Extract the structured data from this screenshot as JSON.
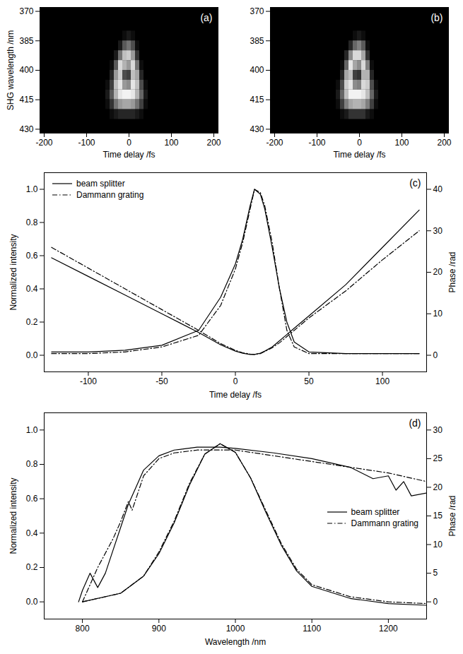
{
  "chart_data": [
    {
      "type": "heatmap",
      "annotations": [
        "(a)"
      ],
      "x_label": "Time delay /fs",
      "y_label": "SHG wavelength /nm",
      "xlim": [
        -210,
        210
      ],
      "xticks": [
        -200,
        -100,
        0,
        100,
        200
      ],
      "ylim": [
        432,
        368
      ],
      "yticks": [
        370,
        385,
        400,
        415,
        430
      ],
      "zlim": [
        0,
        1
      ],
      "x_edges": [
        -65,
        -55,
        -45,
        -35,
        -25,
        -15,
        -5,
        5,
        15,
        25,
        35,
        45,
        55,
        65
      ],
      "y_edges": [
        380,
        385,
        390,
        395,
        400,
        405,
        410,
        415,
        420,
        425
      ],
      "z": [
        [
          0,
          0,
          0,
          0,
          0,
          0.05,
          0.1,
          0.05,
          0,
          0,
          0,
          0,
          0
        ],
        [
          0,
          0,
          0,
          0,
          0.1,
          0.35,
          0.45,
          0.3,
          0.05,
          0,
          0,
          0,
          0
        ],
        [
          0,
          0,
          0,
          0.1,
          0.45,
          0.75,
          0.8,
          0.6,
          0.2,
          0,
          0,
          0,
          0
        ],
        [
          0,
          0,
          0.05,
          0.35,
          0.85,
          0.7,
          0.6,
          0.85,
          0.45,
          0.05,
          0,
          0,
          0
        ],
        [
          0,
          0,
          0.15,
          0.6,
          0.8,
          0.3,
          0.25,
          0.75,
          0.65,
          0.15,
          0,
          0,
          0
        ],
        [
          0,
          0.05,
          0.25,
          0.75,
          0.9,
          0.6,
          0.55,
          0.9,
          0.75,
          0.3,
          0.05,
          0,
          0
        ],
        [
          0,
          0.1,
          0.35,
          0.7,
          0.9,
          0.95,
          0.95,
          0.9,
          0.7,
          0.4,
          0.1,
          0,
          0
        ],
        [
          0,
          0.05,
          0.2,
          0.45,
          0.6,
          0.65,
          0.65,
          0.6,
          0.45,
          0.25,
          0.05,
          0,
          0
        ],
        [
          0,
          0,
          0.05,
          0.1,
          0.15,
          0.15,
          0.15,
          0.15,
          0.1,
          0.05,
          0,
          0,
          0
        ]
      ]
    },
    {
      "type": "heatmap",
      "annotations": [
        "(b)"
      ],
      "x_label": "Time delay /fs",
      "xlim": [
        -210,
        210
      ],
      "xticks": [
        -200,
        -100,
        0,
        100,
        200
      ],
      "ylim": [
        432,
        368
      ],
      "yticks": [
        370,
        385,
        400,
        415,
        430
      ],
      "zlim": [
        0,
        1
      ],
      "x_edges": [
        -65,
        -55,
        -45,
        -35,
        -25,
        -15,
        -5,
        5,
        15,
        25,
        35,
        45,
        55,
        65
      ],
      "y_edges": [
        380,
        385,
        390,
        395,
        400,
        405,
        410,
        415,
        420,
        425
      ],
      "z": [
        [
          0,
          0,
          0,
          0,
          0,
          0.05,
          0.1,
          0.05,
          0,
          0,
          0,
          0,
          0
        ],
        [
          0,
          0,
          0,
          0,
          0.15,
          0.4,
          0.5,
          0.35,
          0.05,
          0,
          0,
          0,
          0
        ],
        [
          0,
          0,
          0,
          0.15,
          0.55,
          0.85,
          0.85,
          0.65,
          0.2,
          0,
          0,
          0,
          0
        ],
        [
          0,
          0,
          0.05,
          0.4,
          0.9,
          0.65,
          0.55,
          0.85,
          0.5,
          0.05,
          0,
          0,
          0
        ],
        [
          0,
          0,
          0.15,
          0.65,
          0.75,
          0.25,
          0.2,
          0.7,
          0.7,
          0.15,
          0,
          0,
          0
        ],
        [
          0,
          0.05,
          0.3,
          0.8,
          0.9,
          0.55,
          0.5,
          0.85,
          0.8,
          0.3,
          0.05,
          0,
          0
        ],
        [
          0,
          0.1,
          0.4,
          0.75,
          0.95,
          0.95,
          0.95,
          0.9,
          0.75,
          0.4,
          0.1,
          0,
          0
        ],
        [
          0,
          0.05,
          0.25,
          0.5,
          0.65,
          0.7,
          0.7,
          0.65,
          0.5,
          0.25,
          0.05,
          0,
          0
        ],
        [
          0,
          0,
          0.05,
          0.1,
          0.2,
          0.2,
          0.2,
          0.2,
          0.1,
          0.05,
          0,
          0,
          0
        ]
      ]
    },
    {
      "type": "line",
      "annotations": [
        "(c)"
      ],
      "x_label": "Time delay /fs",
      "y_label": "Normalized intensity",
      "y2_label": "Phase /rad",
      "legend": "top-left",
      "xlim": [
        -130,
        130
      ],
      "xticks": [
        -100,
        -50,
        0,
        50,
        100
      ],
      "ylim": [
        -0.1,
        1.1
      ],
      "yticks": [
        {
          "value": 0,
          "label": "0.0"
        },
        {
          "value": 0.2,
          "label": "0.2"
        },
        {
          "value": 0.4,
          "label": "0.4"
        },
        {
          "value": 0.6,
          "label": "0.6"
        },
        {
          "value": 0.8,
          "label": "0.8"
        },
        {
          "value": 1,
          "label": "1.0"
        }
      ],
      "y2lim": [
        -4,
        44
      ],
      "y2ticks": [
        0,
        10,
        20,
        30,
        40
      ],
      "x": [
        -125,
        -100,
        -75,
        -50,
        -25,
        -10,
        0,
        5,
        10,
        13,
        17,
        20,
        25,
        30,
        35,
        40,
        50,
        75,
        100,
        125
      ],
      "series": [
        {
          "name": "beam splitter",
          "color": "#000000",
          "line_style": "solid",
          "values": [
            0.02,
            0.02,
            0.03,
            0.06,
            0.15,
            0.35,
            0.55,
            0.7,
            0.9,
            1.0,
            0.97,
            0.88,
            0.65,
            0.4,
            0.2,
            0.08,
            0.02,
            0.01,
            0.01,
            0.01
          ]
        },
        {
          "name": "Dammann grating",
          "color": "#000000",
          "line_style": "dashdot",
          "values": [
            0.01,
            0.01,
            0.02,
            0.05,
            0.12,
            0.3,
            0.52,
            0.68,
            0.88,
            1.0,
            0.98,
            0.9,
            0.68,
            0.4,
            0.15,
            0.05,
            0.01,
            0.01,
            0.01,
            0.01
          ]
        },
        {
          "name": "beam splitter",
          "color": "#000000",
          "line_style": "solid",
          "axis": "y2",
          "values": [
            23.5,
            19,
            14.5,
            10,
            5.5,
            2.5,
            1,
            0.5,
            0.2,
            0.2,
            0.5,
            1,
            2,
            3.5,
            5,
            6.5,
            9.5,
            17,
            26,
            35
          ]
        },
        {
          "name": "Dammann grating",
          "color": "#000000",
          "line_style": "dashdot",
          "axis": "y2",
          "values": [
            26,
            21,
            16,
            11,
            6,
            2.8,
            1.2,
            0.6,
            0.3,
            0.2,
            0.4,
            0.9,
            1.8,
            3,
            4.5,
            6,
            9,
            15.5,
            23,
            30
          ]
        }
      ]
    },
    {
      "type": "line",
      "annotations": [
        "(d)"
      ],
      "x_label": "Wavelength /nm",
      "y_label": "Normalized intensity",
      "y2_label": "Phase /rad",
      "legend": "right",
      "xlim": [
        750,
        1250
      ],
      "xticks": [
        800,
        900,
        1000,
        1100,
        1200
      ],
      "ylim": [
        -0.1,
        1.1
      ],
      "yticks": [
        {
          "value": 0,
          "label": "0.0"
        },
        {
          "value": 0.2,
          "label": "0.2"
        },
        {
          "value": 0.4,
          "label": "0.4"
        },
        {
          "value": 0.6,
          "label": "0.6"
        },
        {
          "value": 0.8,
          "label": "0.8"
        },
        {
          "value": 1,
          "label": "1.0"
        }
      ],
      "y2lim": [
        -3,
        33
      ],
      "y2ticks": [
        0,
        5,
        10,
        15,
        20,
        25,
        30
      ],
      "series": [
        {
          "name": "beam splitter",
          "color": "#000000",
          "line_style": "solid",
          "x": [
            800,
            850,
            880,
            900,
            920,
            940,
            960,
            980,
            1000,
            1020,
            1040,
            1060,
            1080,
            1100,
            1150,
            1200,
            1250
          ],
          "values": [
            0.0,
            0.05,
            0.15,
            0.28,
            0.46,
            0.68,
            0.86,
            0.92,
            0.87,
            0.72,
            0.52,
            0.33,
            0.18,
            0.09,
            0.02,
            -0.01,
            -0.02
          ]
        },
        {
          "name": "Dammann grating",
          "color": "#000000",
          "line_style": "dashdot",
          "x": [
            800,
            850,
            880,
            900,
            920,
            940,
            960,
            980,
            1000,
            1020,
            1040,
            1060,
            1080,
            1100,
            1150,
            1200,
            1250
          ],
          "values": [
            0.0,
            0.05,
            0.15,
            0.29,
            0.47,
            0.69,
            0.86,
            0.92,
            0.87,
            0.72,
            0.53,
            0.34,
            0.19,
            0.1,
            0.03,
            0.0,
            -0.01
          ]
        },
        {
          "name": "beam splitter",
          "color": "#000000",
          "line_style": "solid",
          "axis": "y2",
          "x": [
            795,
            800,
            810,
            820,
            830,
            840,
            850,
            860,
            870,
            880,
            900,
            920,
            950,
            980,
            1000,
            1050,
            1100,
            1150,
            1180,
            1200,
            1210,
            1220,
            1230,
            1250
          ],
          "values": [
            0,
            2,
            5,
            2.5,
            5,
            9,
            13,
            17,
            20,
            23,
            25.5,
            26.5,
            27,
            27,
            26.8,
            26,
            25,
            23.5,
            21.5,
            22,
            19.5,
            21,
            18.5,
            19
          ]
        },
        {
          "name": "Dammann grating",
          "color": "#000000",
          "line_style": "dashdot",
          "axis": "y2",
          "x": [
            800,
            820,
            840,
            850,
            860,
            865,
            880,
            900,
            920,
            950,
            980,
            1000,
            1050,
            1100,
            1150,
            1200,
            1250
          ],
          "values": [
            0,
            6,
            11,
            14,
            17.5,
            16,
            22,
            25,
            26,
            26.5,
            26.5,
            26.5,
            25.5,
            24.5,
            23.5,
            22.5,
            21
          ]
        }
      ]
    }
  ]
}
